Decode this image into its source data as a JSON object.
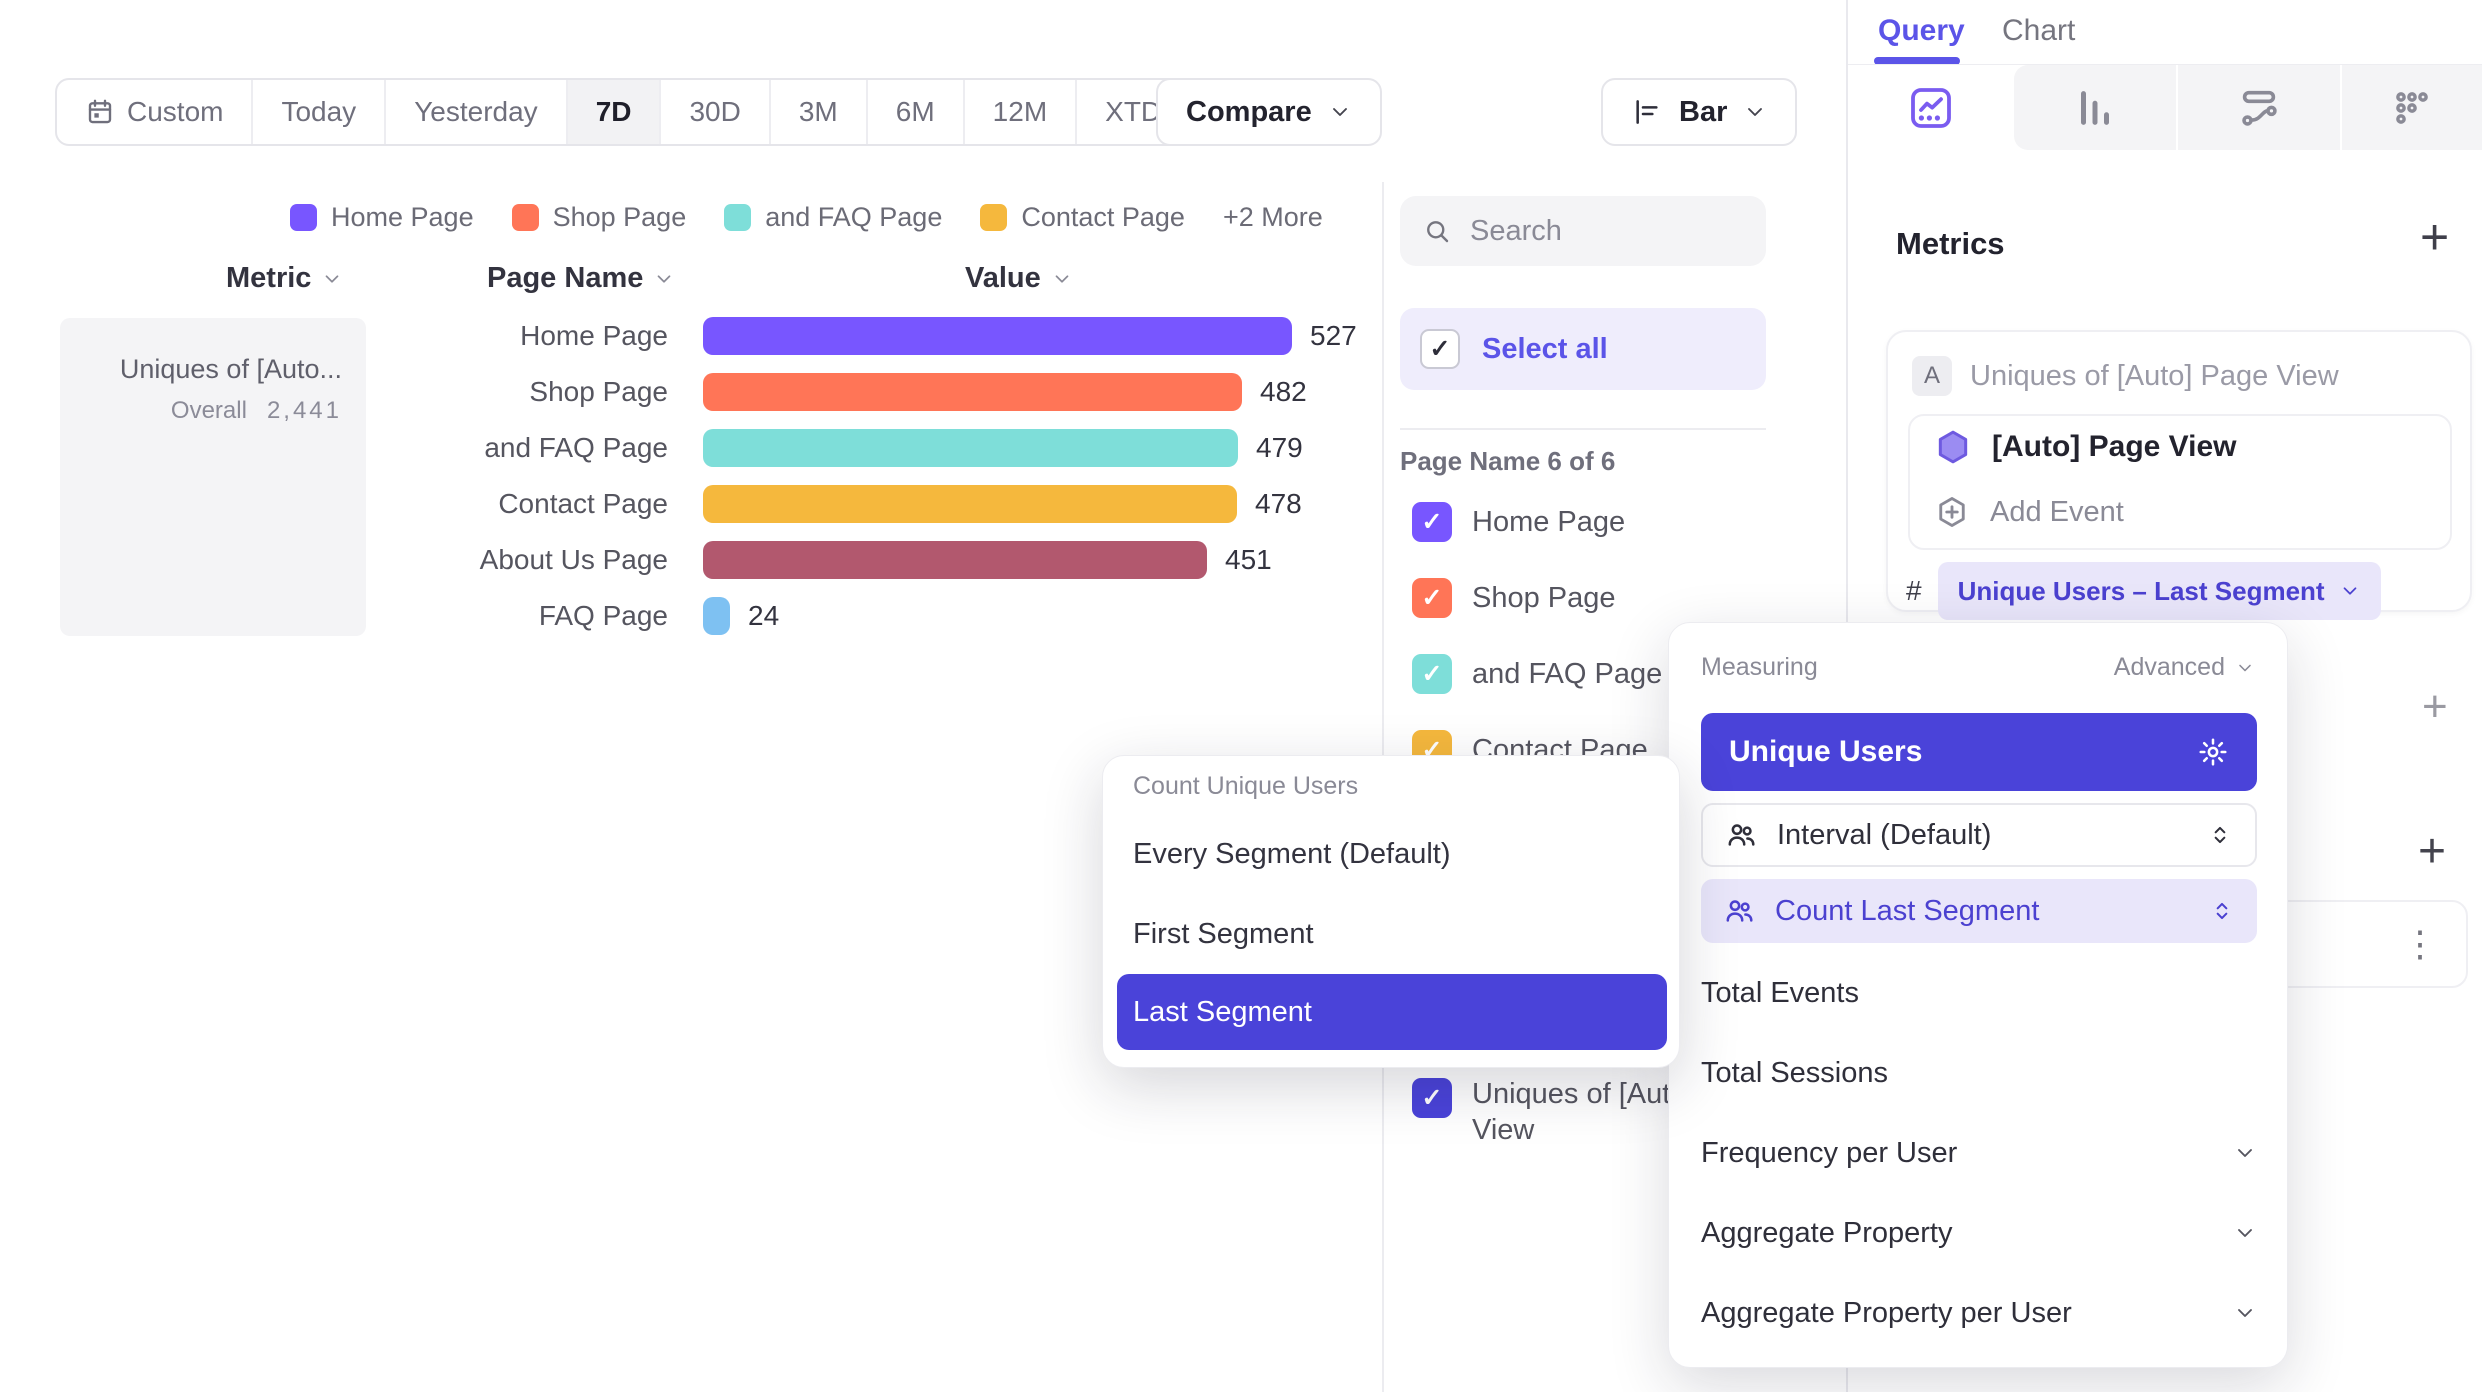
{
  "colors": {
    "accent": "#4A43D9",
    "accent_light": "#E9E6FA",
    "link": "#5B54E8",
    "chart_purple": "#7856FF"
  },
  "icons": [
    "calendar-icon",
    "chevron-down-icon",
    "search-icon",
    "checkmark-icon",
    "bar-chart-horizontal-icon",
    "insights-icon",
    "bar-chart-icon",
    "flows-icon",
    "retention-icon",
    "gear-icon",
    "people-icon",
    "selector-icon",
    "hexagon-event-icon",
    "add-event-icon",
    "plus-icon",
    "kebab-menu-icon",
    "hash-icon"
  ],
  "toolbar": {
    "date_ranges": [
      "Custom",
      "Today",
      "Yesterday",
      "7D",
      "30D",
      "3M",
      "6M",
      "12M",
      "XTD"
    ],
    "selected_range": "7D",
    "compare_label": "Compare",
    "chart_type_label": "Bar"
  },
  "legend": {
    "items": [
      {
        "label": "Home Page",
        "color": "#7856FF"
      },
      {
        "label": "Shop Page",
        "color": "#FF7557"
      },
      {
        "label": "and FAQ Page",
        "color": "#7EDED9"
      },
      {
        "label": "Contact Page",
        "color": "#F5B83D"
      }
    ],
    "more_label": "+2 More"
  },
  "table": {
    "header": {
      "metric": "Metric",
      "page": "Page Name",
      "value": "Value"
    },
    "metric_cell": {
      "title": "Uniques of [Auto...",
      "overall_label": "Overall",
      "overall_value": "2,441"
    },
    "rows": [
      {
        "page": "Home Page",
        "value": 527,
        "color": "#7856FF"
      },
      {
        "page": "Shop Page",
        "value": 482,
        "color": "#FF7557"
      },
      {
        "page": "and FAQ Page",
        "value": 479,
        "color": "#7EDED9"
      },
      {
        "page": "Contact Page",
        "value": 478,
        "color": "#F5B83D"
      },
      {
        "page": "About Us Page",
        "value": 451,
        "color": "#B2586E"
      },
      {
        "page": "FAQ Page",
        "value": 24,
        "color": "#7EC1F2"
      }
    ]
  },
  "chart_data": {
    "type": "bar",
    "orientation": "horizontal",
    "title": "Uniques of [Auto] Page View",
    "categories": [
      "Home Page",
      "Shop Page",
      "and FAQ Page",
      "Contact Page",
      "About Us Page",
      "FAQ Page"
    ],
    "values": [
      527,
      482,
      479,
      478,
      451,
      24
    ],
    "overall_total": 2441,
    "legend_position": "top"
  },
  "filter_panel": {
    "search_placeholder": "Search",
    "select_all_label": "Select all",
    "group_label": "Page Name 6 of 6",
    "items": [
      {
        "label": "Home Page",
        "color": "#7856FF",
        "checked": true
      },
      {
        "label": "Shop Page",
        "color": "#FF7557",
        "checked": true
      },
      {
        "label": "and FAQ Page",
        "color": "#7EDED9",
        "checked": true
      },
      {
        "label": "Contact Page",
        "color": "#F5B83D",
        "checked": true
      }
    ],
    "metric_item": {
      "label": "Uniques of [Auto] Page View",
      "checked": true
    }
  },
  "segment_dropdown": {
    "title": "Count Unique Users",
    "options": [
      "Every Segment (Default)",
      "First Segment",
      "Last Segment"
    ],
    "selected": "Last Segment"
  },
  "measuring": {
    "title": "Measuring",
    "advanced_label": "Advanced",
    "primary": "Unique Users",
    "selectors": [
      {
        "label": "Interval (Default)",
        "active": false
      },
      {
        "label": "Count Last Segment",
        "active": true
      }
    ],
    "options": [
      {
        "label": "Total Events",
        "expandable": false
      },
      {
        "label": "Total Sessions",
        "expandable": false
      },
      {
        "label": "Frequency per User",
        "expandable": true
      },
      {
        "label": "Aggregate Property",
        "expandable": true
      },
      {
        "label": "Aggregate Property per User",
        "expandable": true
      }
    ]
  },
  "query_panel": {
    "tabs": [
      "Query",
      "Chart"
    ],
    "active_tab": "Query",
    "metrics_title": "Metrics",
    "add_symbol": "+",
    "metric_badge": "A",
    "metric_row_title": "Uniques of [Auto] Page View",
    "event_name": "[Auto] Page View",
    "add_event_label": "Add Event",
    "hash_symbol": "#",
    "aggregation_pill": "Unique Users – Last Segment",
    "kebab_symbol": "⋮"
  }
}
